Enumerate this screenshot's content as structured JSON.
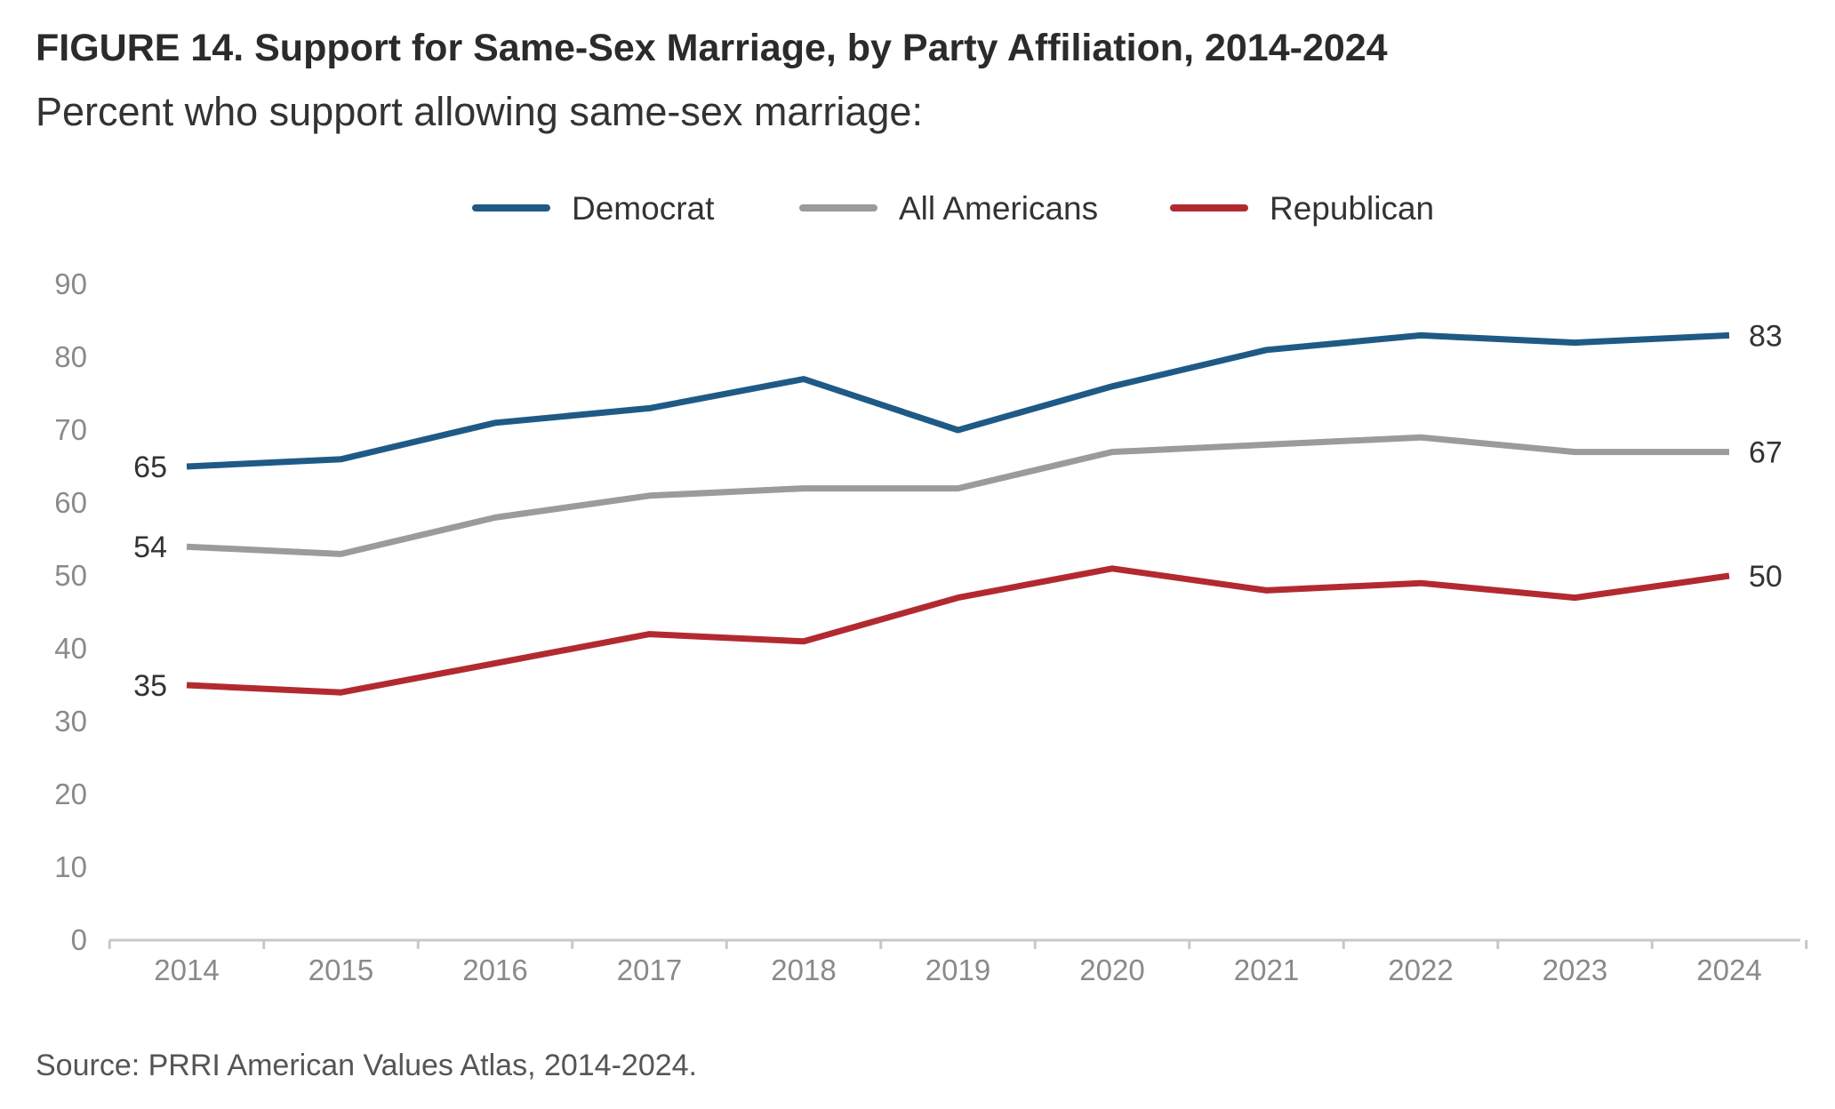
{
  "figure": {
    "title": "FIGURE 14. Support for Same-Sex Marriage, by Party Affiliation, 2014-2024",
    "subtitle": "Percent who support allowing same-sex marriage:",
    "source": "Source: PRRI American Values Atlas, 2014-2024."
  },
  "chart_data": {
    "type": "line",
    "title": "FIGURE 14. Support for Same-Sex Marriage, by Party Affiliation, 2014-2024",
    "subtitle": "Percent who support allowing same-sex marriage:",
    "xlabel": "",
    "ylabel": "",
    "x": [
      "2014",
      "2015",
      "2016",
      "2017",
      "2018",
      "2019",
      "2020",
      "2021",
      "2022",
      "2023",
      "2024"
    ],
    "ylim": [
      0,
      90
    ],
    "yticks": [
      0,
      10,
      20,
      30,
      40,
      50,
      60,
      70,
      80,
      90
    ],
    "grid": false,
    "legend": "top-center",
    "series": [
      {
        "name": "Democrat",
        "color": "#1f5a86",
        "values": [
          65,
          66,
          71,
          73,
          77,
          70,
          76,
          81,
          83,
          82,
          83
        ],
        "start_label": "65",
        "end_label": "83"
      },
      {
        "name": "All Americans",
        "color": "#9b9b9b",
        "values": [
          54,
          53,
          58,
          61,
          62,
          62,
          67,
          68,
          69,
          67,
          67
        ],
        "start_label": "54",
        "end_label": "67"
      },
      {
        "name": "Republican",
        "color": "#b22a30",
        "values": [
          35,
          34,
          38,
          42,
          41,
          47,
          51,
          48,
          49,
          47,
          50
        ],
        "start_label": "35",
        "end_label": "50"
      }
    ]
  }
}
